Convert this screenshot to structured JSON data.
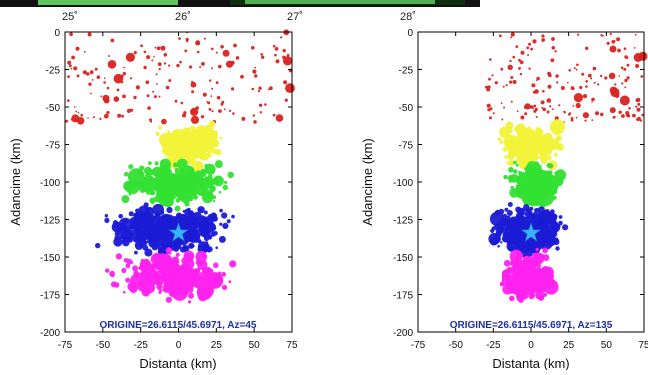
{
  "top_strip": {
    "tick_labels": [
      "25˚",
      "26˚",
      "27˚",
      "28˚"
    ],
    "colors": {
      "frame": "#111111",
      "map_dark": "#0d2f0d",
      "map_green": "#5ec65e"
    }
  },
  "chart_data": [
    {
      "type": "scatter",
      "xlabel": "Distanta (km)",
      "ylabel": "Adancime (km)",
      "xlim": [
        -75,
        75
      ],
      "ylim": [
        -200,
        0
      ],
      "xticks": [
        -75,
        -50,
        -25,
        0,
        25,
        50,
        75
      ],
      "yticks": [
        0,
        -25,
        -50,
        -75,
        -100,
        -125,
        -150,
        -175,
        -200
      ],
      "grid": false,
      "annotation": "ORIGINE=26.6115/45.6971, Az=45",
      "epicenter": {
        "x": 0,
        "y": -134,
        "color": "#33b5ff",
        "marker": "star"
      },
      "series": [
        {
          "color": "#d9231f",
          "depth_range": [
            0,
            -60
          ],
          "x_range": [
            -75,
            75
          ],
          "count": 180
        },
        {
          "color": "#f2f23a",
          "depth_range": [
            -60,
            -90
          ],
          "x_range": [
            -20,
            35
          ],
          "count": 260
        },
        {
          "color": "#33e033",
          "depth_range": [
            -85,
            -118
          ],
          "x_range": [
            -45,
            40
          ],
          "count": 320
        },
        {
          "color": "#1b1bd6",
          "depth_range": [
            -115,
            -150
          ],
          "x_range": [
            -60,
            45
          ],
          "count": 420
        },
        {
          "color": "#ff22ee",
          "depth_range": [
            -145,
            -180
          ],
          "x_range": [
            -55,
            45
          ],
          "count": 280
        }
      ]
    },
    {
      "type": "scatter",
      "xlabel": "Distanta (km)",
      "ylabel": "Adancime (km)",
      "xlim": [
        -75,
        75
      ],
      "ylim": [
        -200,
        0
      ],
      "xticks": [
        -75,
        -50,
        -25,
        0,
        25,
        50,
        75
      ],
      "yticks": [
        0,
        -25,
        -50,
        -75,
        -100,
        -125,
        -150,
        -175,
        -200
      ],
      "grid": false,
      "annotation": "ORIGINE=26.6115/45.6971, Az=135",
      "epicenter": {
        "x": 0,
        "y": -134,
        "color": "#33b5ff",
        "marker": "star"
      },
      "series": [
        {
          "color": "#d9231f",
          "depth_range": [
            0,
            -60
          ],
          "x_range": [
            -30,
            75
          ],
          "count": 170
        },
        {
          "color": "#f2f23a",
          "depth_range": [
            -60,
            -90
          ],
          "x_range": [
            -25,
            25
          ],
          "count": 200
        },
        {
          "color": "#33e033",
          "depth_range": [
            -85,
            -118
          ],
          "x_range": [
            -20,
            25
          ],
          "count": 260
        },
        {
          "color": "#1b1bd6",
          "depth_range": [
            -115,
            -150
          ],
          "x_range": [
            -35,
            30
          ],
          "count": 330
        },
        {
          "color": "#ff22ee",
          "depth_range": [
            -145,
            -180
          ],
          "x_range": [
            -25,
            20
          ],
          "count": 230
        }
      ]
    }
  ]
}
